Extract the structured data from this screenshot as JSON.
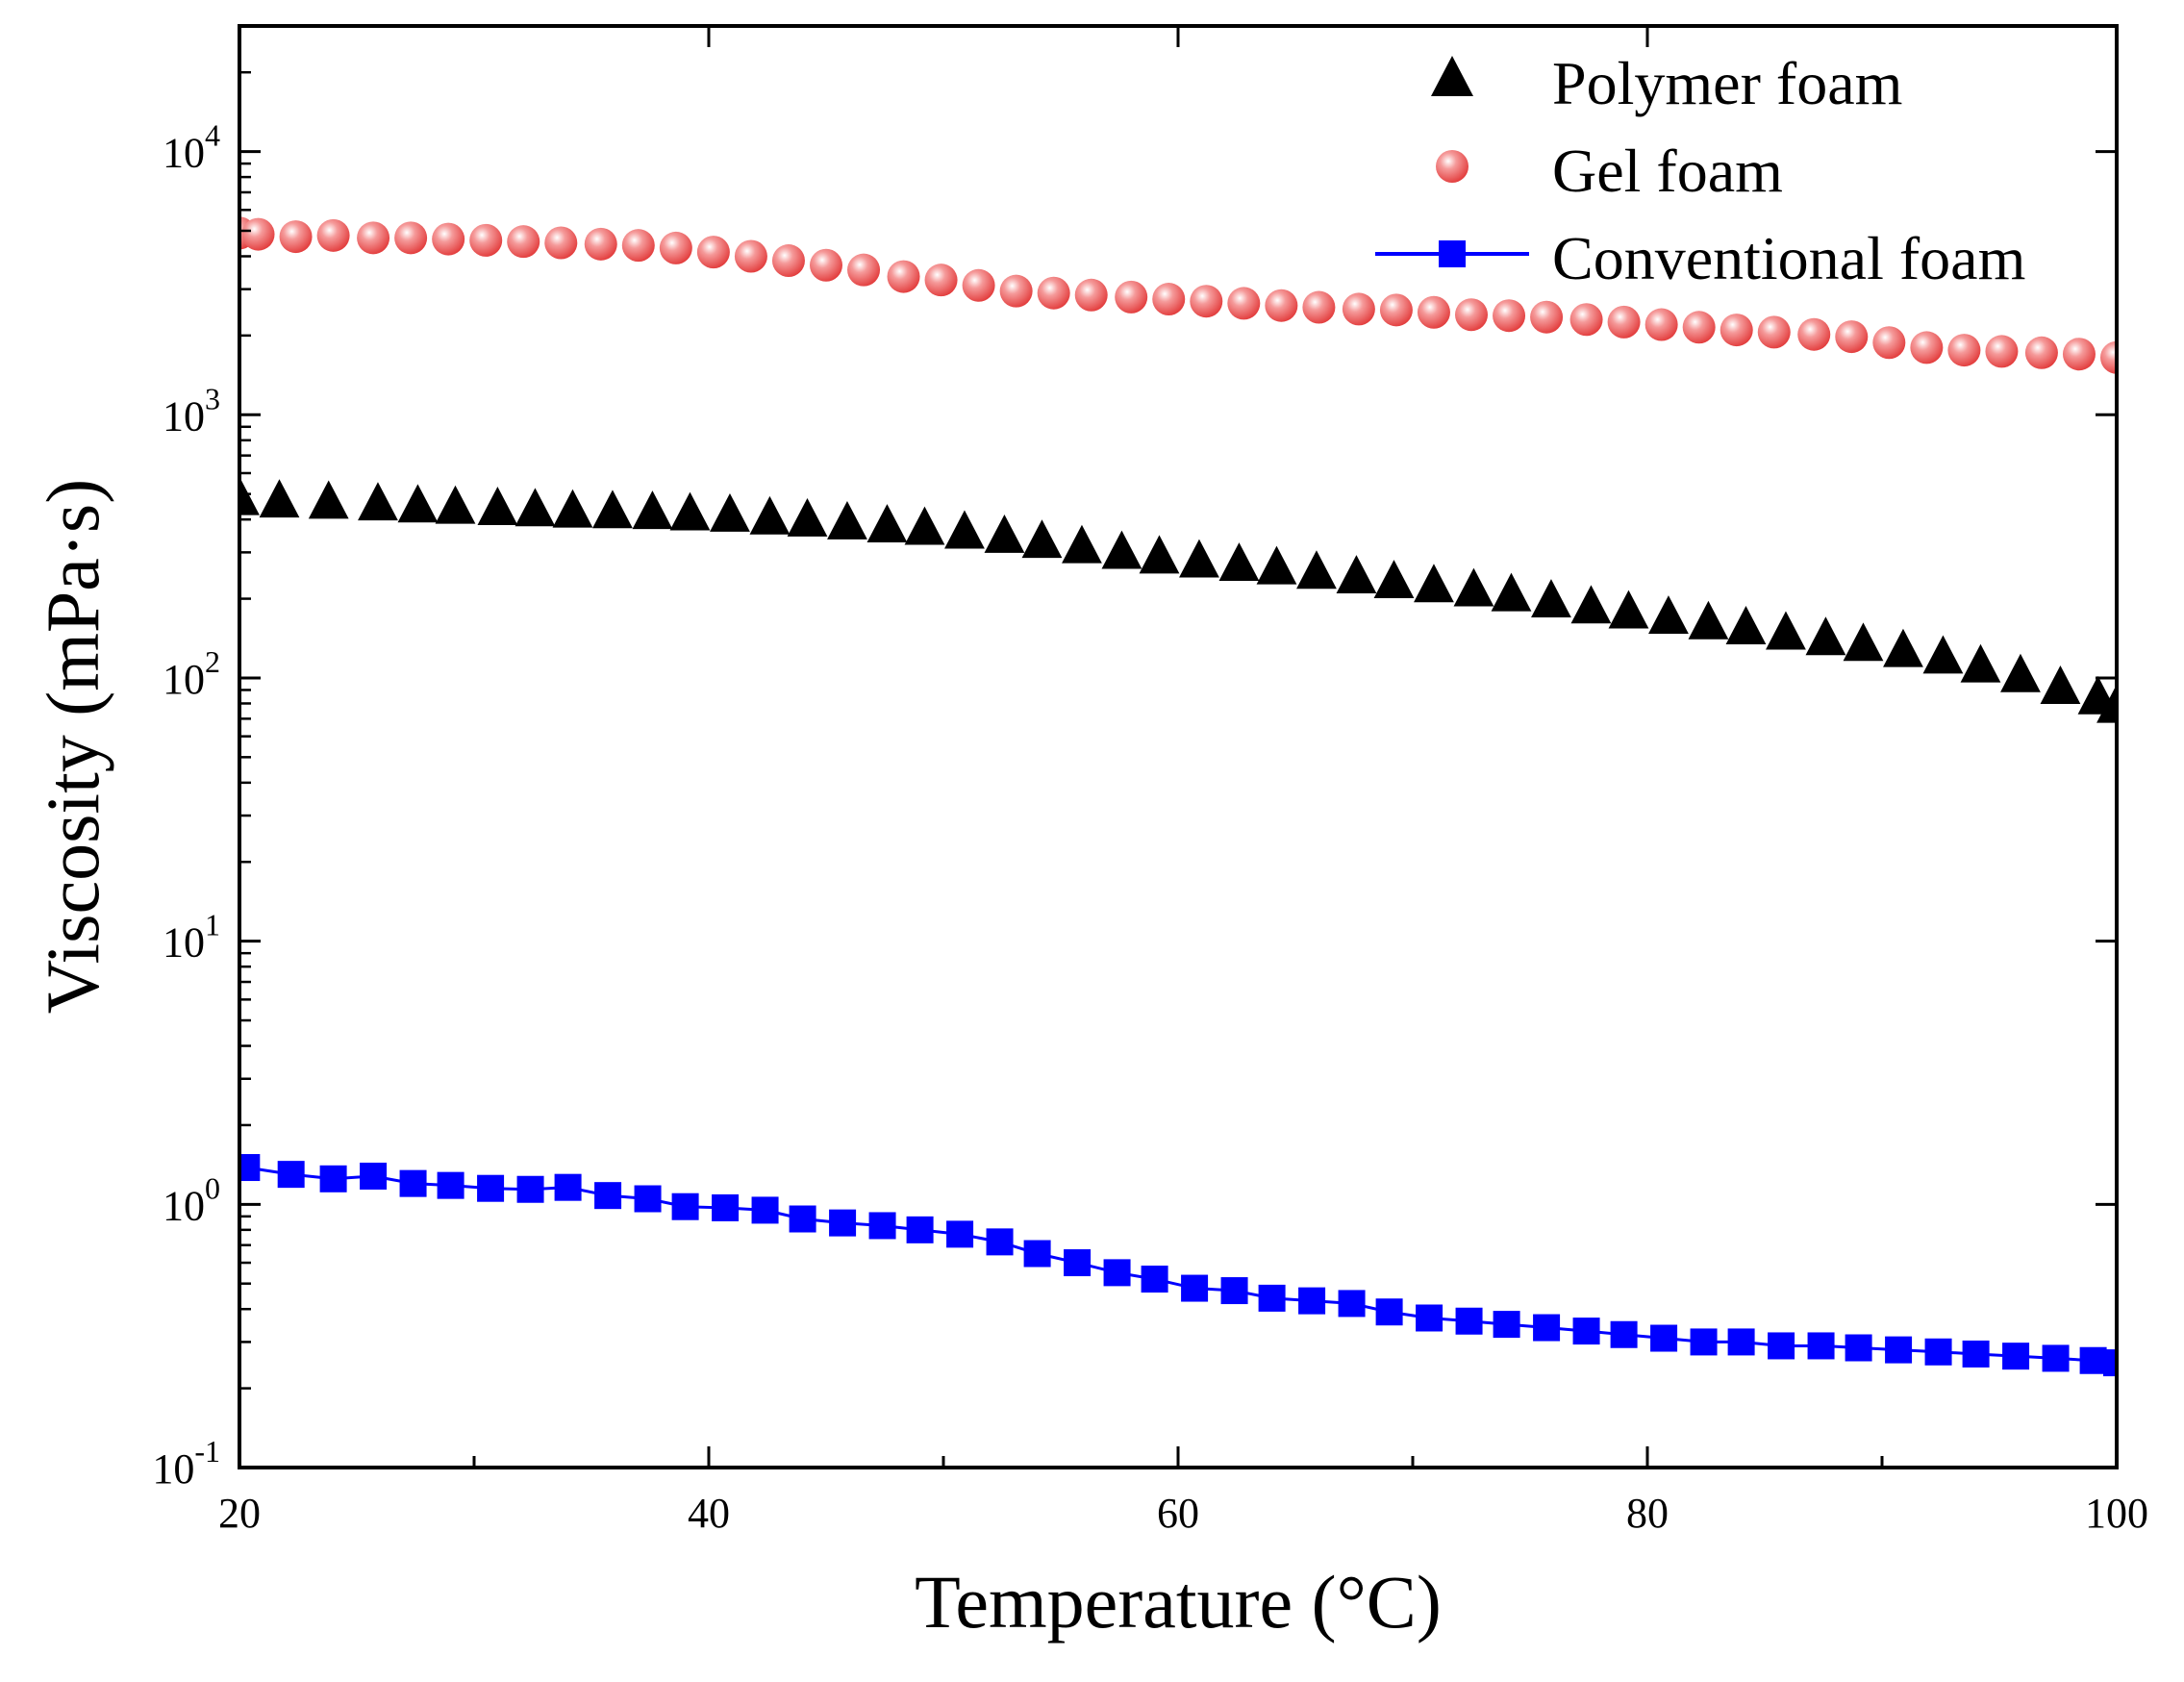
{
  "chart_data": {
    "type": "scatter",
    "xlabel": "Temperature (°C)",
    "ylabel": "Viscosity (mPa·s)",
    "xlim": [
      20,
      100
    ],
    "ylim": [
      0.1,
      30000
    ],
    "yscale": "log",
    "x_ticks": [
      20,
      40,
      60,
      80,
      100
    ],
    "x_tick_labels": [
      "20",
      "40",
      "60",
      "80",
      "100"
    ],
    "y_ticks": [
      {
        "value": 0.1,
        "base": "10",
        "exp": "-1"
      },
      {
        "value": 1,
        "base": "10",
        "exp": "0"
      },
      {
        "value": 10,
        "base": "10",
        "exp": "1"
      },
      {
        "value": 100,
        "base": "10",
        "exp": "2"
      },
      {
        "value": 1000,
        "base": "10",
        "exp": "3"
      },
      {
        "value": 10000,
        "base": "10",
        "exp": "4"
      }
    ],
    "legend_position": "top-right",
    "series": [
      {
        "name": "Polymer foam",
        "marker": "triangle",
        "color": "#000000",
        "line": false,
        "start": [
          20,
          480
        ],
        "end": [
          100,
          78
        ],
        "values": [
          [
            20.0,
            480
          ],
          [
            21.7,
            470
          ],
          [
            23.8,
            465
          ],
          [
            25.9,
            458
          ],
          [
            27.6,
            450
          ],
          [
            29.2,
            445
          ],
          [
            31.0,
            440
          ],
          [
            32.6,
            435
          ],
          [
            34.2,
            430
          ],
          [
            35.9,
            428
          ],
          [
            37.6,
            425
          ],
          [
            39.2,
            420
          ],
          [
            40.9,
            415
          ],
          [
            42.6,
            405
          ],
          [
            44.2,
            398
          ],
          [
            45.9,
            388
          ],
          [
            47.6,
            378
          ],
          [
            49.2,
            370
          ],
          [
            50.9,
            358
          ],
          [
            52.6,
            345
          ],
          [
            54.2,
            330
          ],
          [
            55.9,
            315
          ],
          [
            57.6,
            300
          ],
          [
            59.2,
            288
          ],
          [
            60.9,
            278
          ],
          [
            62.6,
            270
          ],
          [
            64.2,
            262
          ],
          [
            65.9,
            252
          ],
          [
            67.6,
            242
          ],
          [
            69.2,
            232
          ],
          [
            70.9,
            224
          ],
          [
            72.6,
            216
          ],
          [
            74.2,
            207
          ],
          [
            75.9,
            196
          ],
          [
            77.6,
            186
          ],
          [
            79.2,
            178
          ],
          [
            80.9,
            170
          ],
          [
            82.6,
            162
          ],
          [
            84.2,
            155
          ],
          [
            85.9,
            148
          ],
          [
            87.6,
            141
          ],
          [
            89.2,
            134
          ],
          [
            90.9,
            127
          ],
          [
            92.6,
            120
          ],
          [
            94.2,
            111
          ],
          [
            95.9,
            102
          ],
          [
            97.6,
            92
          ],
          [
            99.2,
            84
          ],
          [
            100.0,
            78
          ]
        ]
      },
      {
        "name": "Gel foam",
        "marker": "circle",
        "color": "#e84a4a",
        "line": false,
        "start": [
          20,
          4900
        ],
        "end": [
          100,
          1650
        ],
        "values": [
          [
            20.0,
            4900
          ],
          [
            20.8,
            4850
          ],
          [
            22.4,
            4750
          ],
          [
            24.0,
            4800
          ],
          [
            25.7,
            4700
          ],
          [
            27.3,
            4700
          ],
          [
            28.9,
            4650
          ],
          [
            30.5,
            4600
          ],
          [
            32.1,
            4550
          ],
          [
            33.7,
            4500
          ],
          [
            35.4,
            4450
          ],
          [
            37.0,
            4400
          ],
          [
            38.6,
            4300
          ],
          [
            40.2,
            4150
          ],
          [
            41.8,
            4000
          ],
          [
            43.4,
            3850
          ],
          [
            45.0,
            3700
          ],
          [
            46.6,
            3550
          ],
          [
            48.3,
            3350
          ],
          [
            49.9,
            3250
          ],
          [
            51.5,
            3100
          ],
          [
            53.1,
            2950
          ],
          [
            54.7,
            2900
          ],
          [
            56.3,
            2850
          ],
          [
            58.0,
            2800
          ],
          [
            59.6,
            2750
          ],
          [
            61.2,
            2700
          ],
          [
            62.8,
            2650
          ],
          [
            64.4,
            2600
          ],
          [
            66.0,
            2560
          ],
          [
            67.7,
            2520
          ],
          [
            69.3,
            2500
          ],
          [
            70.9,
            2450
          ],
          [
            72.5,
            2400
          ],
          [
            74.1,
            2380
          ],
          [
            75.7,
            2350
          ],
          [
            77.4,
            2300
          ],
          [
            79.0,
            2250
          ],
          [
            80.6,
            2200
          ],
          [
            82.2,
            2150
          ],
          [
            83.8,
            2100
          ],
          [
            85.4,
            2060
          ],
          [
            87.1,
            2020
          ],
          [
            88.7,
            1980
          ],
          [
            90.3,
            1880
          ],
          [
            91.9,
            1800
          ],
          [
            93.5,
            1760
          ],
          [
            95.1,
            1740
          ],
          [
            96.8,
            1720
          ],
          [
            98.4,
            1700
          ],
          [
            100.0,
            1650
          ]
        ]
      },
      {
        "name": "Conventional foam",
        "marker": "square",
        "color": "#0000ff",
        "line": true,
        "start": [
          20,
          1.38
        ],
        "end": [
          100,
          0.25
        ],
        "values": [
          [
            20.3,
            1.38
          ],
          [
            22.2,
            1.3
          ],
          [
            24.0,
            1.25
          ],
          [
            25.7,
            1.28
          ],
          [
            27.4,
            1.2
          ],
          [
            29.0,
            1.18
          ],
          [
            30.7,
            1.15
          ],
          [
            32.4,
            1.14
          ],
          [
            34.0,
            1.16
          ],
          [
            35.7,
            1.08
          ],
          [
            37.4,
            1.05
          ],
          [
            39.0,
            0.98
          ],
          [
            40.7,
            0.97
          ],
          [
            42.4,
            0.95
          ],
          [
            44.0,
            0.88
          ],
          [
            45.7,
            0.85
          ],
          [
            47.4,
            0.83
          ],
          [
            49.0,
            0.8
          ],
          [
            50.7,
            0.77
          ],
          [
            52.4,
            0.72
          ],
          [
            54.0,
            0.65
          ],
          [
            55.7,
            0.6
          ],
          [
            57.4,
            0.55
          ],
          [
            59.0,
            0.52
          ],
          [
            60.7,
            0.48
          ],
          [
            62.4,
            0.47
          ],
          [
            64.0,
            0.44
          ],
          [
            65.7,
            0.43
          ],
          [
            67.4,
            0.42
          ],
          [
            69.0,
            0.39
          ],
          [
            70.7,
            0.37
          ],
          [
            72.4,
            0.36
          ],
          [
            74.0,
            0.35
          ],
          [
            75.7,
            0.34
          ],
          [
            77.4,
            0.33
          ],
          [
            79.0,
            0.32
          ],
          [
            80.7,
            0.31
          ],
          [
            82.4,
            0.3
          ],
          [
            84.0,
            0.3
          ],
          [
            85.7,
            0.29
          ],
          [
            87.4,
            0.29
          ],
          [
            89.0,
            0.285
          ],
          [
            90.7,
            0.28
          ],
          [
            92.4,
            0.275
          ],
          [
            94.0,
            0.27
          ],
          [
            95.7,
            0.265
          ],
          [
            97.4,
            0.26
          ],
          [
            99.0,
            0.255
          ],
          [
            100.0,
            0.25
          ]
        ]
      }
    ]
  }
}
